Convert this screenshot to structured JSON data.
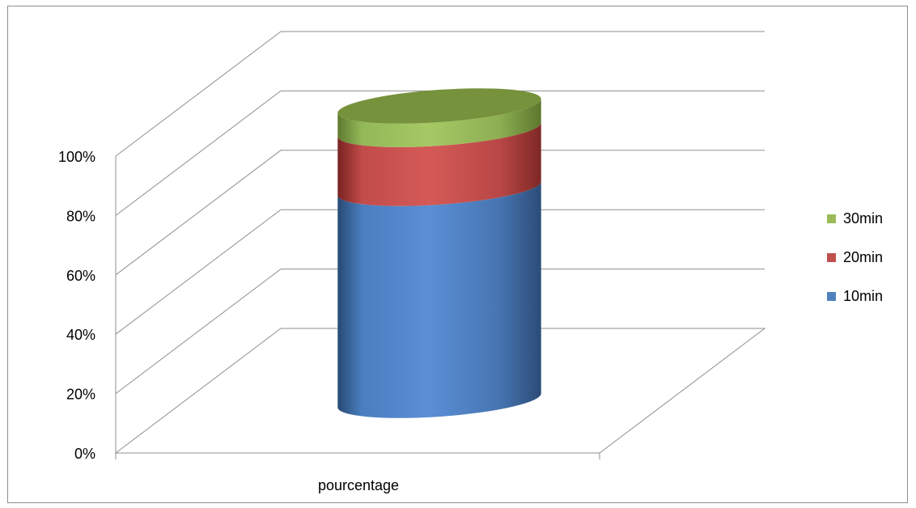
{
  "chart_data": {
    "type": "bar",
    "style": "3d-cylinder-100-percent-stacked",
    "title": "",
    "xlabel": "",
    "ylabel": "",
    "categories": [
      "pourcentage"
    ],
    "series": [
      {
        "name": "10min",
        "values": [
          72
        ],
        "color": "#4f81bd"
      },
      {
        "name": "20min",
        "values": [
          20
        ],
        "color": "#c0504d"
      },
      {
        "name": "30min",
        "values": [
          8
        ],
        "color": "#9bbb59"
      }
    ],
    "ylim": [
      0,
      100
    ],
    "y_ticks": [
      "0%",
      "20%",
      "40%",
      "60%",
      "80%",
      "100%"
    ],
    "grid": true,
    "legend_position": "right"
  }
}
